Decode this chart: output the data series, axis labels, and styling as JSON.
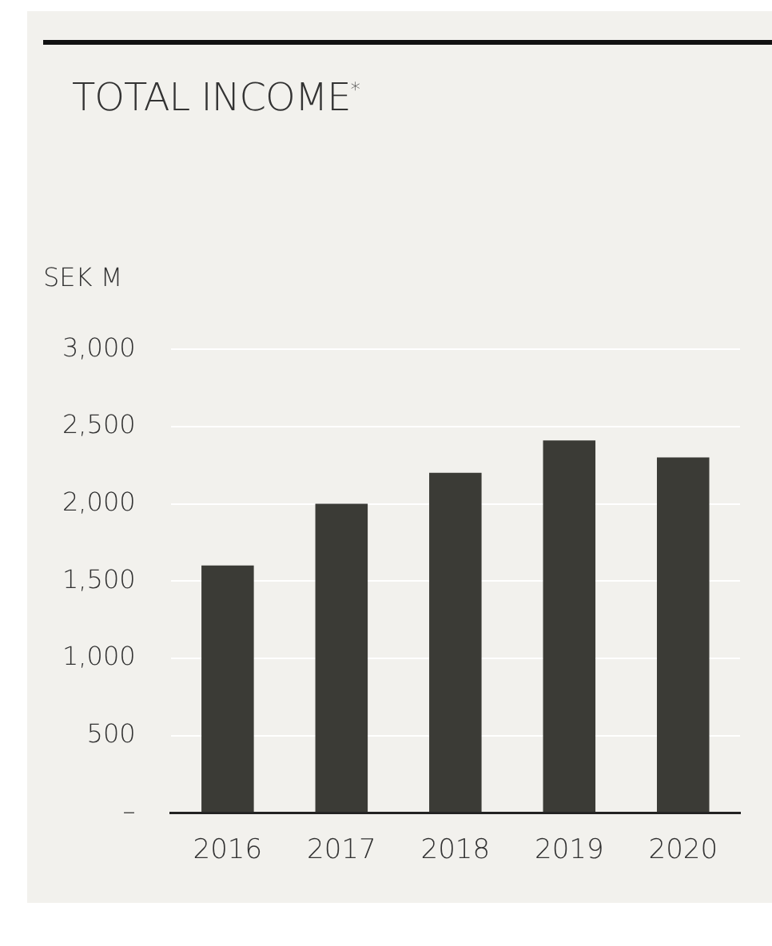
{
  "chart_data": {
    "type": "bar",
    "title": "TOTAL INCOME$^{*}$",
    "ylabel": "SEK M",
    "categories": [
      "2016",
      "2017",
      "2018",
      "2019",
      "2020"
    ],
    "values": [
      1600,
      2000,
      2200,
      2410,
      2300
    ],
    "color": "#3b3b36",
    "ylim": [
      0,
      3000
    ],
    "yticks": [
      {
        "value": 0,
        "label": "–"
      },
      500,
      {
        "value": 1000,
        "label": "1,000"
      },
      {
        "value": 1500,
        "label": "1,500"
      },
      {
        "value": 2000,
        "label": "2,000"
      },
      {
        "value": 2500,
        "label": "2,500"
      },
      {
        "value": 3000,
        "label": "3,000"
      }
    ],
    "grid": "y",
    "legend": false
  }
}
